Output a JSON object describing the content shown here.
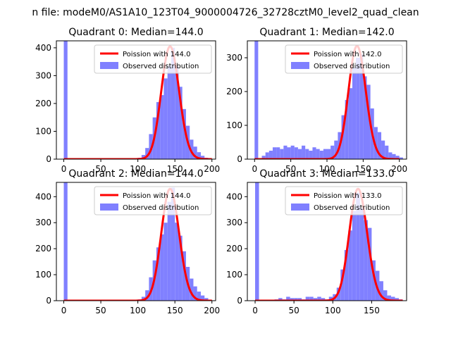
{
  "figure": {
    "suptitle": "n file: modeM0/AS1A10_123T04_9000004726_32728cztM0_level2_quad_clean"
  },
  "colors": {
    "histogram": "#8080ff",
    "poisson": "#ff0000",
    "axes": "#000000",
    "background": "#ffffff"
  },
  "chart_data": [
    {
      "type": "bar",
      "title": "Quadrant 0: Median=144.0",
      "xlim": [
        -10,
        205
      ],
      "ylim": [
        0,
        425
      ],
      "xticks": [
        0,
        50,
        100,
        150,
        200
      ],
      "yticks": [
        0,
        100,
        200,
        300,
        400
      ],
      "legend": {
        "placement": "top-right",
        "entries": [
          "Poission with 144.0",
          "Observed distribution"
        ]
      },
      "histogram": {
        "name": "Observed distribution",
        "bin_width": 5,
        "bins": [
          [
            0,
            425
          ],
          [
            100,
            5
          ],
          [
            105,
            15
          ],
          [
            110,
            40
          ],
          [
            115,
            90
          ],
          [
            120,
            150
          ],
          [
            125,
            205
          ],
          [
            130,
            230
          ],
          [
            135,
            290
          ],
          [
            140,
            335
          ],
          [
            145,
            400
          ],
          [
            150,
            335
          ],
          [
            155,
            260
          ],
          [
            160,
            180
          ],
          [
            165,
            120
          ],
          [
            170,
            70
          ],
          [
            175,
            45
          ],
          [
            180,
            25
          ],
          [
            185,
            12
          ],
          [
            190,
            5
          ]
        ]
      },
      "poisson": {
        "name": "Poission with 144.0",
        "mean": 144.0,
        "peak": 405
      }
    },
    {
      "type": "bar",
      "title": "Quadrant 1: Median=142.0",
      "xlim": [
        -10,
        210
      ],
      "ylim": [
        0,
        350
      ],
      "xticks": [
        0,
        50,
        100,
        150,
        200
      ],
      "yticks": [
        0,
        100,
        200,
        300
      ],
      "legend": {
        "placement": "top-right",
        "entries": [
          "Poission with 142.0",
          "Observed distribution"
        ]
      },
      "histogram": {
        "name": "Observed distribution",
        "bin_width": 5,
        "bins": [
          [
            0,
            350
          ],
          [
            10,
            10
          ],
          [
            15,
            20
          ],
          [
            20,
            25
          ],
          [
            25,
            35
          ],
          [
            30,
            35
          ],
          [
            35,
            30
          ],
          [
            40,
            40
          ],
          [
            45,
            35
          ],
          [
            50,
            40
          ],
          [
            55,
            35
          ],
          [
            60,
            30
          ],
          [
            65,
            40
          ],
          [
            70,
            30
          ],
          [
            75,
            25
          ],
          [
            80,
            35
          ],
          [
            85,
            30
          ],
          [
            90,
            25
          ],
          [
            95,
            30
          ],
          [
            100,
            30
          ],
          [
            105,
            40
          ],
          [
            110,
            55
          ],
          [
            115,
            80
          ],
          [
            120,
            130
          ],
          [
            125,
            175
          ],
          [
            130,
            210
          ],
          [
            135,
            270
          ],
          [
            140,
            300
          ],
          [
            145,
            310
          ],
          [
            150,
            245
          ],
          [
            155,
            220
          ],
          [
            160,
            150
          ],
          [
            165,
            95
          ],
          [
            170,
            80
          ],
          [
            175,
            55
          ],
          [
            180,
            40
          ],
          [
            185,
            20
          ],
          [
            190,
            15
          ],
          [
            195,
            10
          ],
          [
            200,
            5
          ]
        ]
      },
      "poisson": {
        "name": "Poission with 142.0",
        "mean": 142.0,
        "peak": 335
      }
    },
    {
      "type": "bar",
      "title": "Quadrant 2: Median=144.0",
      "xlim": [
        -10,
        205
      ],
      "ylim": [
        0,
        455
      ],
      "xticks": [
        0,
        50,
        100,
        150,
        200
      ],
      "yticks": [
        0,
        100,
        200,
        300,
        400
      ],
      "legend": {
        "placement": "top-right",
        "entries": [
          "Poission with 144.0",
          "Observed distribution"
        ]
      },
      "histogram": {
        "name": "Observed distribution",
        "bin_width": 5,
        "bins": [
          [
            0,
            455
          ],
          [
            100,
            5
          ],
          [
            105,
            15
          ],
          [
            110,
            40
          ],
          [
            115,
            90
          ],
          [
            120,
            155
          ],
          [
            125,
            205
          ],
          [
            130,
            255
          ],
          [
            135,
            300
          ],
          [
            140,
            380
          ],
          [
            145,
            435
          ],
          [
            150,
            300
          ],
          [
            155,
            250
          ],
          [
            160,
            190
          ],
          [
            165,
            130
          ],
          [
            170,
            85
          ],
          [
            175,
            55
          ],
          [
            180,
            35
          ],
          [
            185,
            20
          ],
          [
            190,
            10
          ]
        ]
      },
      "poisson": {
        "name": "Poission with 144.0",
        "mean": 144.0,
        "peak": 430
      }
    },
    {
      "type": "bar",
      "title": "Quadrant 3: Median=133.0",
      "xlim": [
        -10,
        195
      ],
      "ylim": [
        0,
        455
      ],
      "xticks": [
        0,
        50,
        100,
        150
      ],
      "yticks": [
        0,
        100,
        200,
        300,
        400
      ],
      "legend": {
        "placement": "top-right",
        "entries": [
          "Poission with 133.0",
          "Observed distribution"
        ]
      },
      "histogram": {
        "name": "Observed distribution",
        "bin_width": 5,
        "bins": [
          [
            0,
            455
          ],
          [
            25,
            5
          ],
          [
            30,
            10
          ],
          [
            35,
            5
          ],
          [
            40,
            15
          ],
          [
            45,
            10
          ],
          [
            50,
            10
          ],
          [
            55,
            10
          ],
          [
            60,
            5
          ],
          [
            65,
            15
          ],
          [
            70,
            15
          ],
          [
            75,
            10
          ],
          [
            80,
            15
          ],
          [
            85,
            10
          ],
          [
            90,
            5
          ],
          [
            95,
            15
          ],
          [
            100,
            25
          ],
          [
            105,
            50
          ],
          [
            110,
            120
          ],
          [
            115,
            195
          ],
          [
            120,
            270
          ],
          [
            125,
            345
          ],
          [
            130,
            415
          ],
          [
            135,
            355
          ],
          [
            140,
            310
          ],
          [
            145,
            280
          ],
          [
            150,
            155
          ],
          [
            155,
            115
          ],
          [
            160,
            75
          ],
          [
            165,
            40
          ],
          [
            170,
            20
          ],
          [
            175,
            15
          ],
          [
            180,
            10
          ],
          [
            185,
            5
          ]
        ]
      },
      "poisson": {
        "name": "Poission with 133.0",
        "mean": 133.0,
        "peak": 430
      }
    }
  ]
}
